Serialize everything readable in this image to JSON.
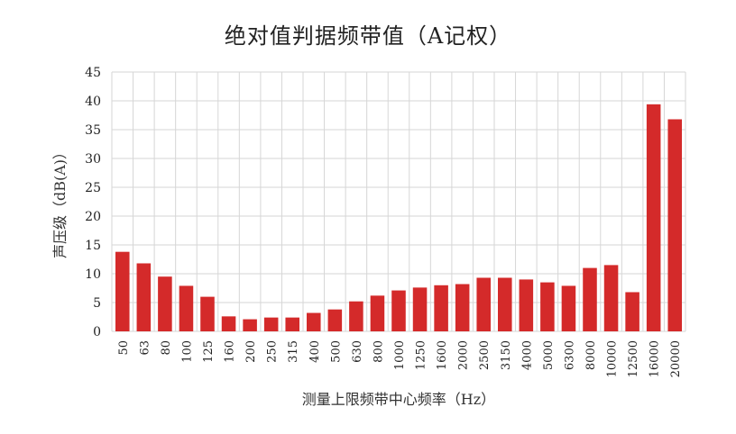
{
  "chart_data": {
    "type": "bar",
    "title": "绝对值判据频带值（A记权）",
    "xlabel": "测量上限频带中心频率（Hz）",
    "ylabel": "声压级（dB(A)）",
    "ylim": [
      0,
      45
    ],
    "yticks": [
      0,
      5,
      10,
      15,
      20,
      25,
      30,
      35,
      40,
      45
    ],
    "grid": true,
    "bar_color": "#d42a2a",
    "categories": [
      "50",
      "63",
      "80",
      "100",
      "125",
      "160",
      "200",
      "250",
      "315",
      "400",
      "500",
      "630",
      "800",
      "1000",
      "1250",
      "1600",
      "2000",
      "2500",
      "3150",
      "4000",
      "5000",
      "6300",
      "8000",
      "10000",
      "12500",
      "16000",
      "20000"
    ],
    "values": [
      13.8,
      11.8,
      9.5,
      7.9,
      6.0,
      2.6,
      2.1,
      2.4,
      2.4,
      3.2,
      3.8,
      5.2,
      6.2,
      7.1,
      7.6,
      8.0,
      8.2,
      9.3,
      9.3,
      9.0,
      8.5,
      7.9,
      11.0,
      11.5,
      6.8,
      39.4,
      36.8
    ]
  }
}
